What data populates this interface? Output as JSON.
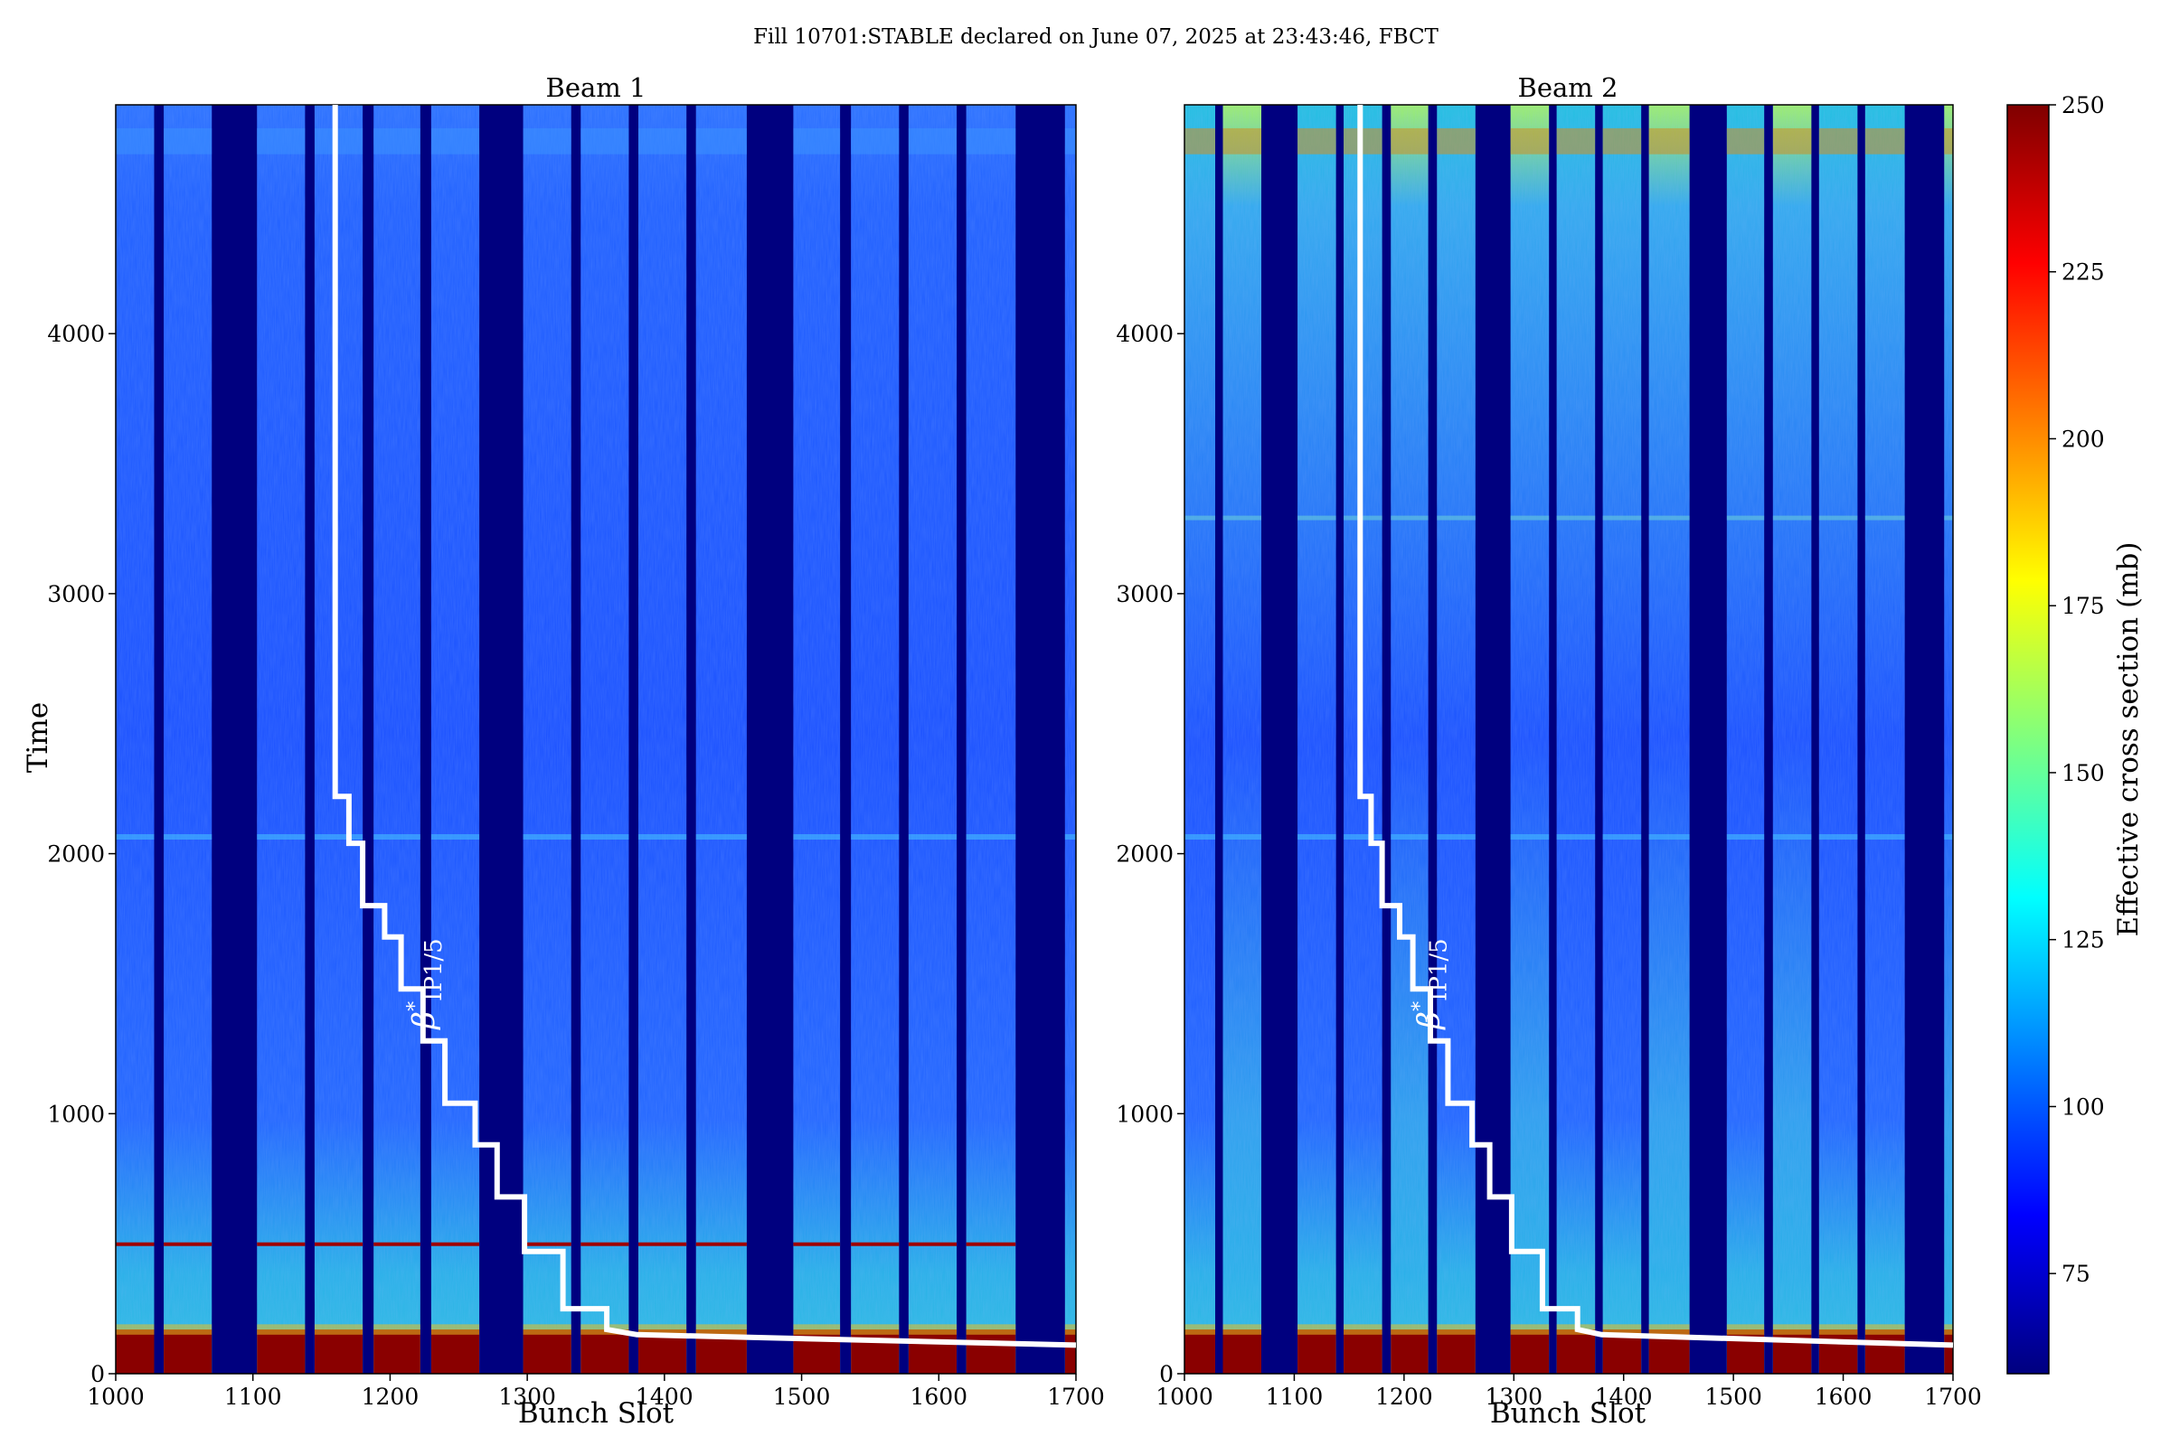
{
  "figure": {
    "suptitle": "Fill 10701:STABLE declared on June 07, 2025 at 23:43:46, FBCT"
  },
  "chart_data": [
    {
      "type": "heatmap",
      "title": "Beam 1",
      "xlabel": "Bunch Slot",
      "ylabel": "Time",
      "xlim": [
        1000,
        1700
      ],
      "ylim": [
        0,
        4880
      ],
      "xticks": [
        "1000",
        "1100",
        "1200",
        "1300",
        "1400",
        "1500",
        "1600",
        "1700"
      ],
      "yticks": [
        "0",
        "1000",
        "2000",
        "3000",
        "4000"
      ],
      "trains": [
        [
          1000,
          1028
        ],
        [
          1035,
          1070
        ],
        [
          1103,
          1138
        ],
        [
          1145,
          1180
        ],
        [
          1188,
          1222
        ],
        [
          1230,
          1265
        ],
        [
          1297,
          1332
        ],
        [
          1339,
          1374
        ],
        [
          1381,
          1416
        ],
        [
          1423,
          1460
        ],
        [
          1494,
          1528
        ],
        [
          1536,
          1571
        ],
        [
          1578,
          1613
        ],
        [
          1620,
          1656
        ],
        [
          1692,
          1700
        ]
      ],
      "annotation": {
        "symbol": "β",
        "sup": "*",
        "sub": "IP1/5",
        "x": 1232,
        "y": 1500
      },
      "beta_star_staircase": [
        [
          1160,
          4880
        ],
        [
          1160,
          2220
        ],
        [
          1170,
          2220
        ],
        [
          1170,
          2040
        ],
        [
          1180,
          2040
        ],
        [
          1180,
          1800
        ],
        [
          1196,
          1800
        ],
        [
          1196,
          1680
        ],
        [
          1208,
          1680
        ],
        [
          1208,
          1480
        ],
        [
          1224,
          1480
        ],
        [
          1224,
          1280
        ],
        [
          1240,
          1280
        ],
        [
          1240,
          1040
        ],
        [
          1262,
          1040
        ],
        [
          1262,
          880
        ],
        [
          1278,
          880
        ],
        [
          1278,
          680
        ],
        [
          1298,
          680
        ],
        [
          1298,
          470
        ],
        [
          1326,
          470
        ],
        [
          1326,
          250
        ],
        [
          1358,
          250
        ],
        [
          1358,
          170
        ],
        [
          1380,
          150
        ],
        [
          1700,
          110
        ]
      ]
    },
    {
      "type": "heatmap",
      "title": "Beam 2",
      "xlabel": "Bunch Slot",
      "ylabel": "",
      "xlim": [
        1000,
        1700
      ],
      "ylim": [
        0,
        4880
      ],
      "xticks": [
        "1000",
        "1100",
        "1200",
        "1300",
        "1400",
        "1500",
        "1600",
        "1700"
      ],
      "yticks": [
        "0",
        "1000",
        "2000",
        "3000",
        "4000"
      ],
      "trains": [
        [
          1000,
          1028
        ],
        [
          1035,
          1070
        ],
        [
          1103,
          1138
        ],
        [
          1145,
          1180
        ],
        [
          1188,
          1222
        ],
        [
          1230,
          1265
        ],
        [
          1297,
          1332
        ],
        [
          1339,
          1374
        ],
        [
          1381,
          1416
        ],
        [
          1423,
          1460
        ],
        [
          1494,
          1528
        ],
        [
          1536,
          1571
        ],
        [
          1578,
          1613
        ],
        [
          1620,
          1656
        ],
        [
          1692,
          1700
        ]
      ],
      "annotation": {
        "symbol": "β",
        "sup": "*",
        "sub": "IP1/5",
        "x": 1232,
        "y": 1500
      },
      "beta_star_staircase": [
        [
          1160,
          4880
        ],
        [
          1160,
          2220
        ],
        [
          1170,
          2220
        ],
        [
          1170,
          2040
        ],
        [
          1180,
          2040
        ],
        [
          1180,
          1800
        ],
        [
          1196,
          1800
        ],
        [
          1196,
          1680
        ],
        [
          1208,
          1680
        ],
        [
          1208,
          1480
        ],
        [
          1224,
          1480
        ],
        [
          1224,
          1280
        ],
        [
          1240,
          1280
        ],
        [
          1240,
          1040
        ],
        [
          1262,
          1040
        ],
        [
          1262,
          880
        ],
        [
          1278,
          880
        ],
        [
          1278,
          680
        ],
        [
          1298,
          680
        ],
        [
          1298,
          470
        ],
        [
          1326,
          470
        ],
        [
          1326,
          250
        ],
        [
          1358,
          250
        ],
        [
          1358,
          170
        ],
        [
          1380,
          150
        ],
        [
          1700,
          110
        ]
      ]
    }
  ],
  "colorbar": {
    "label": "Effective cross section (mb)",
    "range": [
      60,
      250
    ],
    "ticks": [
      "75",
      "100",
      "125",
      "150",
      "175",
      "200",
      "225",
      "250"
    ],
    "colormap": [
      "#00007f",
      "#0000ff",
      "#007fff",
      "#00ffff",
      "#7fff7f",
      "#ffff00",
      "#ff7f00",
      "#ff0000",
      "#7f0000"
    ]
  },
  "colors": {
    "background": "#00007f",
    "staircase": "#ffffff"
  }
}
